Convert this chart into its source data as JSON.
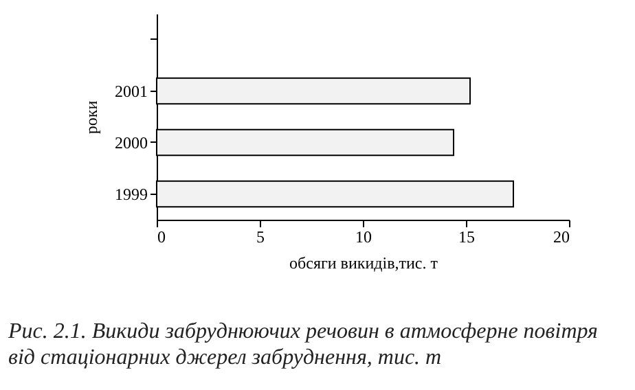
{
  "chart_data": {
    "type": "bar",
    "orientation": "horizontal",
    "categories": [
      null,
      "2001",
      "2000",
      "1999"
    ],
    "values": [
      null,
      15.2,
      14.4,
      17.3
    ],
    "color": "#f2f2f2",
    "xlim": [
      0,
      20
    ],
    "xticks": [
      0,
      5,
      10,
      15,
      20
    ],
    "xlabel": "обсяги викидів,тис. т",
    "ylabel": "роки",
    "grid": false,
    "annotations": [
      "Рис. 2.1. Викиди забруднюючих речовин в атмосферне повітря від стаціонарних джерел забруднення, тис. т"
    ]
  }
}
